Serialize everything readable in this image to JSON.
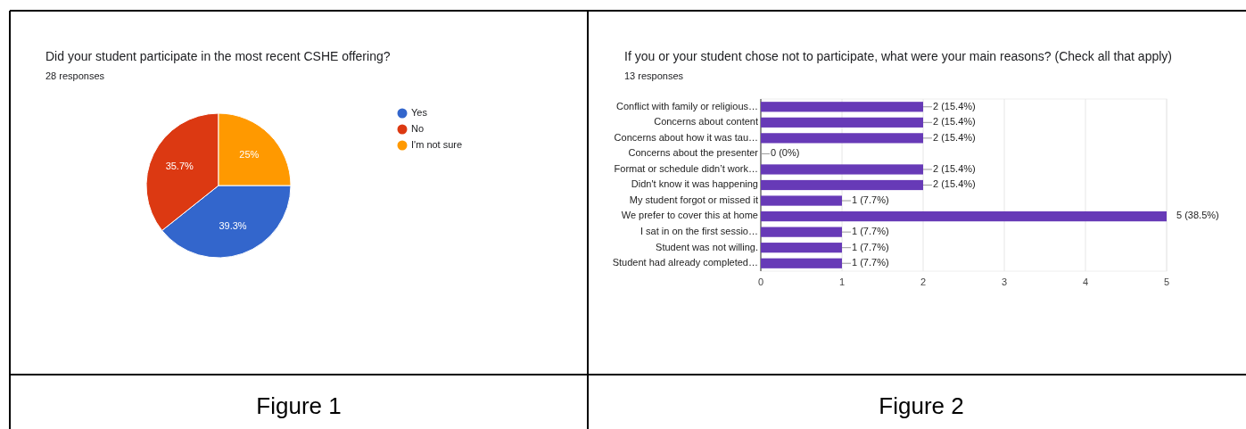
{
  "chart_data": [
    {
      "type": "pie",
      "title": "Did your student participate in the most recent CSHE offering?",
      "subtitle": "28 responses",
      "categories": [
        "Yes",
        "No",
        "I'm not sure"
      ],
      "values": [
        39.3,
        35.7,
        25
      ],
      "colors": [
        "#3366cc",
        "#dc3912",
        "#ff9900"
      ],
      "value_labels": [
        "39.3%",
        "35.7%",
        "25%"
      ],
      "legend": "right",
      "annotations": [
        "Figure 1"
      ]
    },
    {
      "type": "bar",
      "orientation": "horizontal",
      "title": "If you or your student chose not to participate, what were your main reasons? (Check all that apply)",
      "subtitle": "13 responses",
      "categories": [
        "Conflict with family or religious…",
        "Concerns about content",
        "Concerns about how it was tau…",
        "Concerns about the presenter",
        "Format or schedule didn’t work…",
        "Didn't know it was happening",
        "My student forgot or missed it",
        "We prefer to cover this at home",
        "I sat in on the first sessio…",
        "Student was not willing.",
        "Student had already completed…"
      ],
      "values": [
        2,
        2,
        2,
        0,
        2,
        2,
        1,
        5,
        1,
        1,
        1
      ],
      "color": "#673ab7",
      "value_labels": [
        "2 (15.4%)",
        "2 (15.4%)",
        "2 (15.4%)",
        "0 (0%)",
        "2 (15.4%)",
        "2 (15.4%)",
        "1 (7.7%)",
        "5 (38.5%)",
        "1 (7.7%)",
        "1 (7.7%)",
        "1 (7.7%)"
      ],
      "xlim": [
        0,
        5
      ],
      "xticks": [
        0,
        1,
        2,
        3,
        4,
        5
      ],
      "grid": "x",
      "annotations": [
        "Figure 2"
      ]
    }
  ]
}
